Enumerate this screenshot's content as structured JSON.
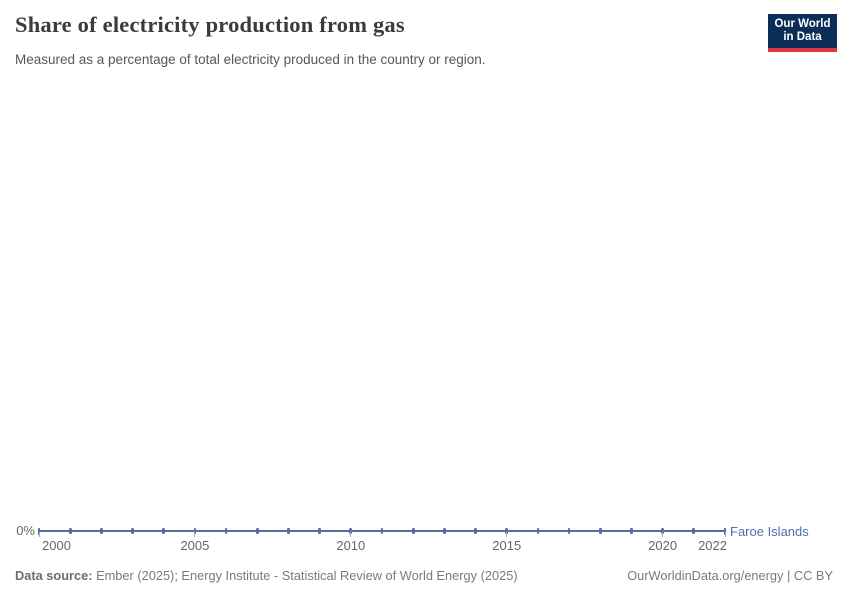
{
  "header": {
    "title": "Share of electricity production from gas",
    "subtitle": "Measured as a percentage of total electricity produced in the country or region.",
    "logo": {
      "line1": "Our World",
      "line2": "in Data",
      "bg_color": "#0d2d59",
      "bar_color": "#dc3741"
    }
  },
  "chart_data": {
    "type": "line",
    "title": "Share of electricity production from gas",
    "subtitle": "Measured as a percentage of total electricity produced in the country or region.",
    "unit": "%",
    "grid": false,
    "legend_position": "end-of-line",
    "x_range": [
      2000,
      2022
    ],
    "ylim": [
      0,
      0
    ],
    "y_axis": {
      "zero_label": "0%",
      "tick_labels": [
        "0%"
      ]
    },
    "x_axis": {
      "ticks": [
        {
          "year": 2000,
          "label": "2000",
          "align": "start"
        },
        {
          "year": 2005,
          "label": "2005",
          "align": "middle"
        },
        {
          "year": 2010,
          "label": "2010",
          "align": "middle"
        },
        {
          "year": 2015,
          "label": "2015",
          "align": "middle"
        },
        {
          "year": 2020,
          "label": "2020",
          "align": "middle"
        },
        {
          "year": 2022,
          "label": "2022",
          "align": "end"
        }
      ]
    },
    "series": [
      {
        "name": "Faroe Islands",
        "color": "#5070aa",
        "x": [
          2000,
          2001,
          2002,
          2003,
          2004,
          2005,
          2006,
          2007,
          2008,
          2009,
          2010,
          2011,
          2012,
          2013,
          2014,
          2015,
          2016,
          2017,
          2018,
          2019,
          2020,
          2021,
          2022
        ],
        "values": [
          0,
          0,
          0,
          0,
          0,
          0,
          0,
          0,
          0,
          0,
          0,
          0,
          0,
          0,
          0,
          0,
          0,
          0,
          0,
          0,
          0,
          0,
          0
        ]
      }
    ]
  },
  "footer": {
    "datasource_label": "Data source:",
    "datasource_text": " Ember (2025); Energy Institute - Statistical Review of World Energy (2025)",
    "rights": "OurWorldinData.org/energy | CC BY"
  }
}
